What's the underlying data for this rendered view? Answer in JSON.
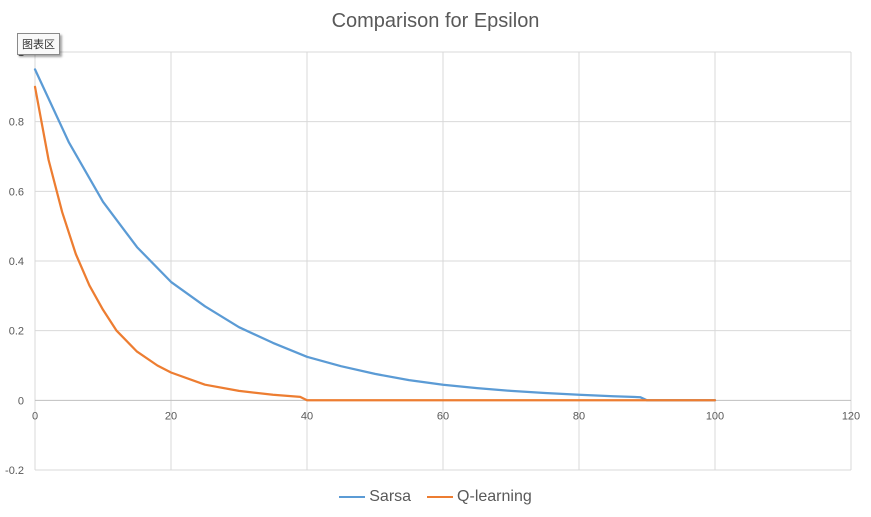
{
  "chart_data": {
    "type": "line",
    "title": "Comparison for Epsilon",
    "xlabel": "",
    "ylabel": "",
    "xlim": [
      0,
      120
    ],
    "ylim": [
      -0.2,
      1
    ],
    "x_ticks": [
      "0",
      "20",
      "40",
      "60",
      "80",
      "100",
      "120"
    ],
    "y_ticks": [
      "-0.2",
      "0",
      "0.2",
      "0.4",
      "0.6",
      "0.8",
      "1"
    ],
    "grid": true,
    "legend_position": "bottom",
    "series": [
      {
        "name": "Sarsa",
        "color": "#5b9bd5",
        "x": [
          0,
          5,
          10,
          15,
          20,
          25,
          30,
          35,
          40,
          45,
          50,
          55,
          60,
          65,
          70,
          75,
          80,
          85,
          89,
          90,
          95,
          100
        ],
        "y": [
          0.95,
          0.74,
          0.57,
          0.44,
          0.34,
          0.27,
          0.21,
          0.165,
          0.125,
          0.098,
          0.076,
          0.058,
          0.045,
          0.035,
          0.027,
          0.021,
          0.016,
          0.012,
          0.009,
          0,
          0,
          0
        ]
      },
      {
        "name": "Q-learning",
        "color": "#ed7d31",
        "x": [
          0,
          2,
          4,
          6,
          8,
          10,
          12,
          15,
          18,
          20,
          25,
          30,
          35,
          39,
          40,
          45,
          50,
          60,
          70,
          80,
          90,
          100
        ],
        "y": [
          0.9,
          0.69,
          0.54,
          0.42,
          0.33,
          0.26,
          0.2,
          0.14,
          0.1,
          0.08,
          0.045,
          0.027,
          0.016,
          0.01,
          0,
          0,
          0,
          0,
          0,
          0,
          0,
          0
        ]
      }
    ]
  },
  "ui": {
    "tooltip": "图表区"
  }
}
